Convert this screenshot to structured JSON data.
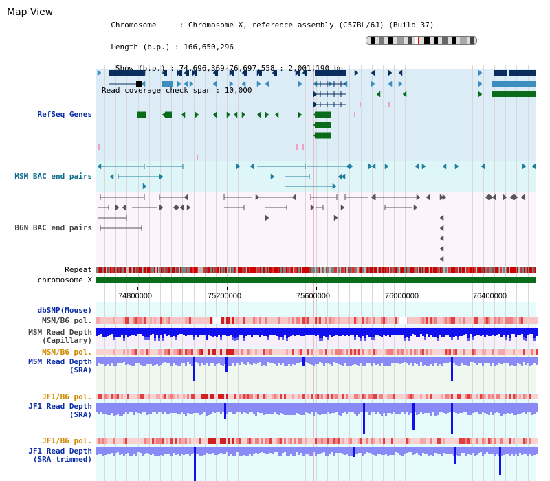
{
  "header": {
    "title": "Map View",
    "info_lines": [
      "  Chromosome     : Chromosome X, reference assembly (C57BL/6J) (Build 37)",
      "  Length (b.p.) : 166,650,296",
      "   Show (b.p.) : 74,696,369-76,697,558 : 2,001,190 bp",
      "Read coverage check span : 10,000"
    ]
  },
  "tracks": {
    "refseq": "RefSeq Genes",
    "msm_bac": "MSM BAC end pairs",
    "b6n_bac": "B6N BAC end pairs",
    "repeat": "Repeat",
    "chromosome": "chromosome X",
    "dbsnp": "dbSNP(Mouse)",
    "msm_b6_pol_1": "MSM/B6 pol.",
    "msm_read_depth_cap": "MSM Read Depth\n(Capillary)",
    "msm_b6_pol_2": "MSM/B6 pol.",
    "msm_read_depth_sra": "MSM Read Depth\n(SRA)",
    "jf1_b6_pol_1": "JF1/B6 pol.",
    "jf1_read_depth_sra": "JF1 Read Depth\n(SRA)",
    "jf1_b6_pol_2": "JF1/B6 pol.",
    "jf1_read_depth_trim": "JF1 Read Depth\n(SRA trimmed)"
  },
  "axis": {
    "ticks": [
      "74800000",
      "75200000",
      "75600000",
      "76000000",
      "76400000"
    ]
  },
  "colors": {
    "refseq_bg": "#dcedf8",
    "msm_bac_bg": "#dff6f8",
    "b6n_bac_bg": "#fdf3fa",
    "lower_bg": "#e4fbfb",
    "navy": "#0b2d5e",
    "steel": "#3d8dbf",
    "green": "#0a6b1a",
    "teal": "#1e7fa0",
    "label_blue": "#0b2ea8",
    "label_gray": "#444444",
    "label_orange": "#d08a00",
    "depth_blue": "#1010ee",
    "depth_light": "#8a8af6"
  }
}
